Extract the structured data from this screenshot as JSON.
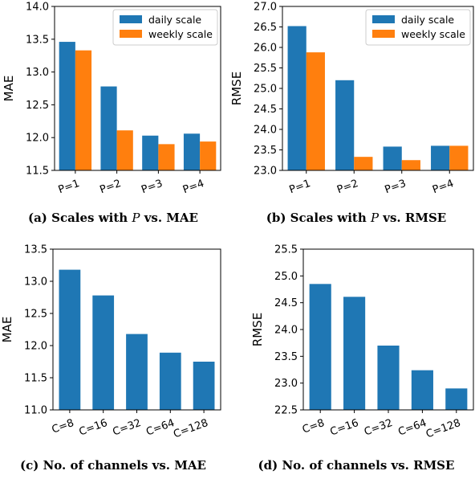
{
  "colors": {
    "daily": "#1f77b4",
    "weekly": "#ff7f0e"
  },
  "chart_data": [
    {
      "id": "a",
      "type": "bar",
      "caption": "(a) Scales with P vs. MAE",
      "ylabel": "MAE",
      "ylim": [
        11.5,
        14.0
      ],
      "yticks": [
        11.5,
        12.0,
        12.5,
        13.0,
        13.5,
        14.0
      ],
      "categories": [
        "P=1",
        "P=2",
        "P=3",
        "P=4"
      ],
      "series": [
        {
          "name": "daily scale",
          "values": [
            13.46,
            12.78,
            12.03,
            12.06
          ]
        },
        {
          "name": "weekly scale",
          "values": [
            13.33,
            12.11,
            11.9,
            11.94
          ]
        }
      ],
      "legend": "top-right",
      "grid": false
    },
    {
      "id": "b",
      "type": "bar",
      "caption": "(b) Scales with P vs. RMSE",
      "ylabel": "RMSE",
      "ylim": [
        23.0,
        27.0
      ],
      "yticks": [
        23.0,
        23.5,
        24.0,
        24.5,
        25.0,
        25.5,
        26.0,
        26.5,
        27.0
      ],
      "categories": [
        "P=1",
        "P=2",
        "P=3",
        "P=4"
      ],
      "series": [
        {
          "name": "daily scale",
          "values": [
            26.52,
            25.2,
            23.58,
            23.6
          ]
        },
        {
          "name": "weekly scale",
          "values": [
            25.88,
            23.33,
            23.25,
            23.6
          ]
        }
      ],
      "legend": "top-right",
      "grid": false
    },
    {
      "id": "c",
      "type": "bar",
      "caption": "(c) No. of channels vs. MAE",
      "ylabel": "MAE",
      "ylim": [
        11.0,
        13.5
      ],
      "yticks": [
        11.0,
        11.5,
        12.0,
        12.5,
        13.0,
        13.5
      ],
      "categories": [
        "C=8",
        "C=16",
        "C=32",
        "C=64",
        "C=128"
      ],
      "series": [
        {
          "values": [
            13.18,
            12.78,
            12.18,
            11.89,
            11.75
          ]
        }
      ],
      "grid": false
    },
    {
      "id": "d",
      "type": "bar",
      "caption": "(d) No. of channels vs. RMSE",
      "ylabel": "RMSE",
      "ylim": [
        22.5,
        25.5
      ],
      "yticks": [
        22.5,
        23.0,
        23.5,
        24.0,
        24.5,
        25.0,
        25.5
      ],
      "categories": [
        "C=8",
        "C=16",
        "C=32",
        "C=64",
        "C=128"
      ],
      "series": [
        {
          "values": [
            24.85,
            24.61,
            23.7,
            23.24,
            22.9
          ]
        }
      ],
      "grid": false
    }
  ]
}
